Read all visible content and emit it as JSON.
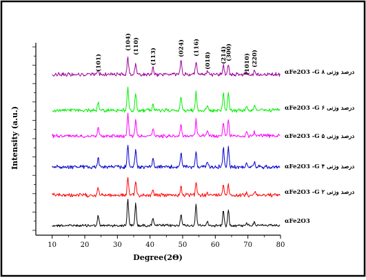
{
  "chart_data": {
    "type": "line",
    "title": "",
    "xlabel": "Degree(2Θ)",
    "ylabel": "Intensity (a.u.)",
    "xlim": [
      5,
      80
    ],
    "x_ticks": [
      "10",
      "20",
      "30",
      "40",
      "50",
      "60",
      "70",
      "80"
    ],
    "grid": false,
    "legend": "right, labels placed next to each trace",
    "peak_labels": [
      {
        "hkl": "(101)",
        "x": 24.1
      },
      {
        "hkl": "(104)",
        "x": 33.2
      },
      {
        "hkl": "(110)",
        "x": 35.6
      },
      {
        "hkl": "(113)",
        "x": 40.9
      },
      {
        "hkl": "(024)",
        "x": 49.5
      },
      {
        "hkl": "(116)",
        "x": 54.1
      },
      {
        "hkl": "(018)",
        "x": 57.6
      },
      {
        "hkl": "(214)",
        "x": 62.5
      },
      {
        "hkl": "(300)",
        "x": 64.0
      },
      {
        "hkl": "(1010)",
        "x": 69.6
      },
      {
        "hkl": "(220)",
        "x": 72.0
      }
    ],
    "series": [
      {
        "name": "αFe2O3",
        "color": "#000000",
        "peaks": [
          [
            24.1,
            0.35
          ],
          [
            33.2,
            1.0
          ],
          [
            35.6,
            0.8
          ],
          [
            40.9,
            0.3
          ],
          [
            49.5,
            0.45
          ],
          [
            54.1,
            0.75
          ],
          [
            57.6,
            0.15
          ],
          [
            62.5,
            0.55
          ],
          [
            64.0,
            0.6
          ],
          [
            69.6,
            0.12
          ],
          [
            72.0,
            0.18
          ]
        ]
      },
      {
        "name": "αFe2O3 -G  ۲ درصد وزنی",
        "color": "#ff0000",
        "peaks": [
          [
            24.1,
            0.45
          ],
          [
            33.2,
            1.0
          ],
          [
            35.6,
            0.8
          ],
          [
            40.9,
            0.35
          ],
          [
            49.5,
            0.5
          ],
          [
            54.1,
            0.7
          ],
          [
            57.6,
            0.2
          ],
          [
            62.5,
            0.6
          ],
          [
            64.0,
            0.65
          ],
          [
            69.6,
            0.15
          ],
          [
            72.0,
            0.2
          ]
        ]
      },
      {
        "name": "αFe2O3 -G  ۴ درصد وزنی",
        "color": "#0000cc",
        "peaks": [
          [
            24.1,
            0.4
          ],
          [
            33.2,
            1.0
          ],
          [
            35.6,
            0.8
          ],
          [
            40.9,
            0.35
          ],
          [
            49.5,
            0.6
          ],
          [
            54.1,
            0.7
          ],
          [
            57.6,
            0.2
          ],
          [
            62.5,
            0.8
          ],
          [
            64.0,
            0.85
          ],
          [
            69.6,
            0.15
          ],
          [
            72.0,
            0.2
          ]
        ]
      },
      {
        "name": "αFe2O3 -G  ۵ درصد وزنی",
        "color": "#ff00ff",
        "peaks": [
          [
            24.1,
            0.35
          ],
          [
            33.2,
            1.0
          ],
          [
            35.6,
            0.75
          ],
          [
            40.9,
            0.3
          ],
          [
            49.5,
            0.55
          ],
          [
            54.1,
            0.7
          ],
          [
            57.6,
            0.2
          ],
          [
            62.5,
            0.6
          ],
          [
            64.0,
            0.7
          ],
          [
            69.6,
            0.15
          ],
          [
            72.0,
            0.2
          ]
        ]
      },
      {
        "name": "αFe2O3 -G  ۶ درصد وزنی",
        "color": "#00ee00",
        "peaks": [
          [
            24.1,
            0.35
          ],
          [
            33.2,
            1.0
          ],
          [
            35.6,
            0.75
          ],
          [
            40.9,
            0.35
          ],
          [
            49.5,
            0.6
          ],
          [
            54.1,
            0.8
          ],
          [
            57.6,
            0.2
          ],
          [
            62.5,
            0.7
          ],
          [
            64.0,
            0.75
          ],
          [
            69.6,
            0.15
          ],
          [
            72.0,
            0.2
          ]
        ]
      },
      {
        "name": "αFe2O3 -G  ۸ درصد وزنی",
        "color": "#990099",
        "peaks": [
          [
            24.1,
            0.3
          ],
          [
            33.2,
            1.0
          ],
          [
            35.6,
            0.7
          ],
          [
            40.9,
            0.4
          ],
          [
            49.5,
            0.85
          ],
          [
            54.1,
            0.75
          ],
          [
            57.6,
            0.2
          ],
          [
            62.5,
            0.5
          ],
          [
            64.0,
            0.6
          ],
          [
            69.6,
            0.15
          ],
          [
            72.0,
            0.2
          ]
        ]
      }
    ]
  }
}
